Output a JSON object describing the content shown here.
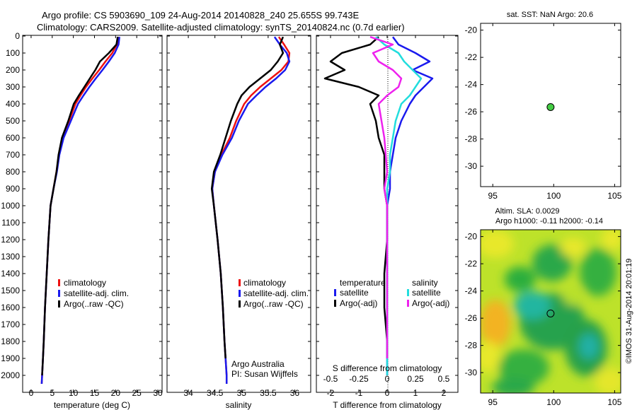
{
  "header": {
    "title_line1": "Argo profile: CS 5903690_109 24-Aug-2014 20140828_240 25.655S 99.743E",
    "title_line2": "Climatology: CARS2009. Satellite-adjusted climatology: synTS_20140824.nc (0.7d earlier)"
  },
  "colors": {
    "climatology": "#ee1111",
    "satellite": "#1a1aee",
    "argo": "#000000",
    "sal_satellite": "#22dddd",
    "sal_argo": "#ee22ee",
    "float_marker": "#44cc44"
  },
  "chart_data": [
    {
      "type": "line",
      "name": "temperature-profile",
      "xlabel": "temperature (deg C)",
      "xlim": [
        -2,
        31
      ],
      "ylim": [
        2070,
        0
      ],
      "y_reversed": true,
      "xticks": [
        "0",
        "5",
        "10",
        "15",
        "20",
        "25",
        "30"
      ],
      "yticks": [
        "0",
        "100",
        "200",
        "300",
        "400",
        "500",
        "600",
        "700",
        "800",
        "900",
        "1000",
        "1100",
        "1200",
        "1300",
        "1400",
        "1500",
        "1600",
        "1700",
        "1800",
        "1900",
        "2000"
      ],
      "legend": [
        "climatology",
        "satellite-adj. clim.",
        "Argo(..raw -QC)"
      ],
      "series": [
        {
          "name": "climatology",
          "x": [
            20.6,
            20.3,
            19.2,
            17.6,
            16.1,
            14.5,
            13.0,
            11.7,
            10.5,
            9.0,
            7.4,
            6.6,
            6.0,
            5.3,
            4.6,
            4.1,
            3.7,
            3.3,
            3.0,
            2.8,
            2.6,
            2.5
          ],
          "y": [
            5,
            50,
            100,
            150,
            200,
            250,
            300,
            350,
            400,
            500,
            600,
            700,
            800,
            900,
            1000,
            1200,
            1400,
            1600,
            1800,
            1900,
            2000,
            2050
          ]
        },
        {
          "name": "satellite-adj. clim.",
          "x": [
            20.9,
            20.7,
            19.8,
            18.4,
            16.9,
            15.3,
            13.8,
            12.4,
            11.1,
            9.4,
            7.7,
            6.7,
            6.1,
            5.3,
            4.6,
            4.1,
            3.7,
            3.3,
            3.0,
            2.8,
            2.6,
            2.5
          ],
          "y": [
            5,
            50,
            100,
            150,
            200,
            250,
            300,
            350,
            400,
            500,
            600,
            700,
            800,
            900,
            1000,
            1200,
            1400,
            1600,
            1800,
            1900,
            2000,
            2050
          ]
        },
        {
          "name": "Argo(..raw -QC)",
          "x": [
            20.5,
            20.2,
            18.4,
            16.3,
            15.2,
            13.9,
            12.6,
            11.3,
            10.1,
            8.8,
            7.3,
            6.5,
            6.0,
            5.3,
            4.6,
            4.1,
            3.7,
            3.3,
            3.0,
            2.8,
            2.6
          ],
          "y": [
            5,
            50,
            100,
            150,
            200,
            250,
            300,
            350,
            400,
            500,
            600,
            700,
            800,
            900,
            1000,
            1200,
            1400,
            1600,
            1800,
            1900,
            2000
          ]
        }
      ]
    },
    {
      "type": "line",
      "name": "salinity-profile",
      "xlabel": "salinity",
      "xlim": [
        33.6,
        36.3
      ],
      "ylim": [
        2070,
        0
      ],
      "y_reversed": true,
      "xticks": [
        "34",
        "34.5",
        "35",
        "35.5",
        "36"
      ],
      "legend": [
        "climatology",
        "satellite-adj. clim.",
        "Argo(..raw -QC)"
      ],
      "annotation": [
        "Argo Australia",
        "PI: Susan Wijffels"
      ],
      "series": [
        {
          "name": "climatology",
          "x": [
            35.7,
            35.8,
            35.9,
            35.88,
            35.75,
            35.55,
            35.35,
            35.18,
            35.05,
            34.9,
            34.78,
            34.62,
            34.5,
            34.45,
            34.48,
            34.55,
            34.61,
            34.65,
            34.68,
            34.7,
            34.72,
            34.72
          ],
          "y": [
            5,
            50,
            100,
            150,
            200,
            250,
            300,
            350,
            400,
            500,
            600,
            700,
            800,
            900,
            1000,
            1200,
            1400,
            1600,
            1800,
            1900,
            2000,
            2050
          ]
        },
        {
          "name": "satellite-adj. clim.",
          "x": [
            35.62,
            35.72,
            35.85,
            35.9,
            35.82,
            35.65,
            35.45,
            35.28,
            35.12,
            34.95,
            34.82,
            34.64,
            34.5,
            34.45,
            34.48,
            34.55,
            34.61,
            34.65,
            34.68,
            34.7,
            34.72,
            34.72
          ],
          "y": [
            5,
            50,
            100,
            150,
            200,
            250,
            300,
            350,
            400,
            500,
            600,
            700,
            800,
            900,
            1000,
            1200,
            1400,
            1600,
            1800,
            1900,
            2000,
            2050
          ]
        },
        {
          "name": "Argo(..raw -QC)",
          "x": [
            35.78,
            35.72,
            35.78,
            35.68,
            35.55,
            35.35,
            35.15,
            35.0,
            34.92,
            34.8,
            34.7,
            34.6,
            34.48,
            34.44,
            34.48,
            34.55,
            34.61,
            34.65,
            34.68,
            34.7
          ],
          "y": [
            5,
            50,
            100,
            150,
            200,
            250,
            300,
            350,
            400,
            500,
            600,
            700,
            800,
            900,
            1000,
            1200,
            1400,
            1600,
            1800,
            1900
          ]
        }
      ]
    },
    {
      "type": "line",
      "name": "difference-profile",
      "xlabel": "T difference from climatology",
      "x2label": "S difference from climatology",
      "xlim": [
        -2.5,
        2.5
      ],
      "ylim": [
        2070,
        0
      ],
      "y_reversed": true,
      "xticks": [
        "-2",
        "-1",
        "0",
        "1",
        "2"
      ],
      "x2ticks": [
        "-0.5",
        "-0.25",
        "0",
        "0.25",
        "0.5"
      ],
      "legend": [
        "temperature",
        "satellite",
        "Argo(-adj)",
        "salinity",
        "satellite",
        "Argo(-adj)"
      ],
      "series": [
        {
          "name": "temperature satellite",
          "x": [
            0.2,
            0.4,
            1.0,
            1.5,
            0.9,
            1.6,
            1.3,
            1.0,
            0.8,
            0.5,
            0.3,
            0.2,
            0.1,
            0.1,
            0.0,
            0.0,
            0.0,
            0.0,
            0.0,
            0.0
          ],
          "y": [
            5,
            50,
            100,
            150,
            200,
            250,
            300,
            350,
            400,
            500,
            600,
            700,
            800,
            900,
            1000,
            1200,
            1400,
            1600,
            1800,
            2000
          ]
        },
        {
          "name": "temperature Argo(-adj)",
          "x": [
            -0.3,
            -0.6,
            -1.6,
            -2.0,
            -1.5,
            -2.2,
            -1.0,
            -0.3,
            -0.6,
            -0.4,
            -0.3,
            -0.1,
            -0.1,
            -0.1,
            0.0,
            0.0,
            -0.1,
            -0.1,
            0.0,
            0.0
          ],
          "y": [
            5,
            50,
            100,
            150,
            200,
            250,
            300,
            350,
            400,
            500,
            600,
            700,
            800,
            900,
            1000,
            1200,
            1400,
            1600,
            1800,
            1900
          ]
        },
        {
          "name": "salinity satellite",
          "x": [
            -0.4,
            -0.1,
            0.4,
            0.6,
            0.9,
            1.2,
            1.0,
            0.8,
            0.5,
            0.3,
            0.2,
            0.1,
            0.1,
            0.0,
            0.0,
            0.0,
            0.0,
            0.0,
            0.0,
            0.0
          ],
          "y": [
            5,
            50,
            100,
            150,
            200,
            250,
            300,
            350,
            400,
            500,
            600,
            700,
            800,
            900,
            1000,
            1200,
            1400,
            1600,
            1800,
            2000
          ]
        },
        {
          "name": "salinity Argo(-adj)",
          "x": [
            -0.6,
            0.2,
            -0.5,
            -0.3,
            0.2,
            0.5,
            0.4,
            0.0,
            -0.3,
            -0.2,
            -0.1,
            -0.05,
            0.0,
            -0.1,
            0.0,
            0.0,
            0.0,
            0.0,
            0.0,
            0.0
          ],
          "y": [
            5,
            50,
            100,
            150,
            200,
            250,
            300,
            350,
            400,
            500,
            600,
            700,
            800,
            900,
            1000,
            1200,
            1400,
            1600,
            1800,
            1900
          ]
        }
      ]
    },
    {
      "type": "scatter",
      "name": "location-map",
      "title": "sat. SST: NaN Argo: 20.6",
      "xlim": [
        94,
        105.5
      ],
      "ylim": [
        -31.5,
        -19.5
      ],
      "xticks": [
        "95",
        "100",
        "105"
      ],
      "yticks": [
        "-20",
        "-22",
        "-24",
        "-26",
        "-28",
        "-30"
      ],
      "points": [
        {
          "x": 99.743,
          "y": -25.655
        }
      ]
    },
    {
      "type": "heatmap",
      "name": "sla-map",
      "title_line1": "Altim. SLA: 0.0029",
      "title_line2": "Argo h1000: -0.11 h2000: -0.14",
      "xlim": [
        94,
        105.5
      ],
      "ylim": [
        -31.5,
        -19.5
      ],
      "xticks": [
        "95",
        "100",
        "105"
      ],
      "yticks": [
        "-20",
        "-22",
        "-24",
        "-26",
        "-28",
        "-30"
      ],
      "side_label": "©IMOS 31-Aug-2014 20:01:19",
      "points": [
        {
          "x": 99.743,
          "y": -25.655
        }
      ]
    }
  ]
}
